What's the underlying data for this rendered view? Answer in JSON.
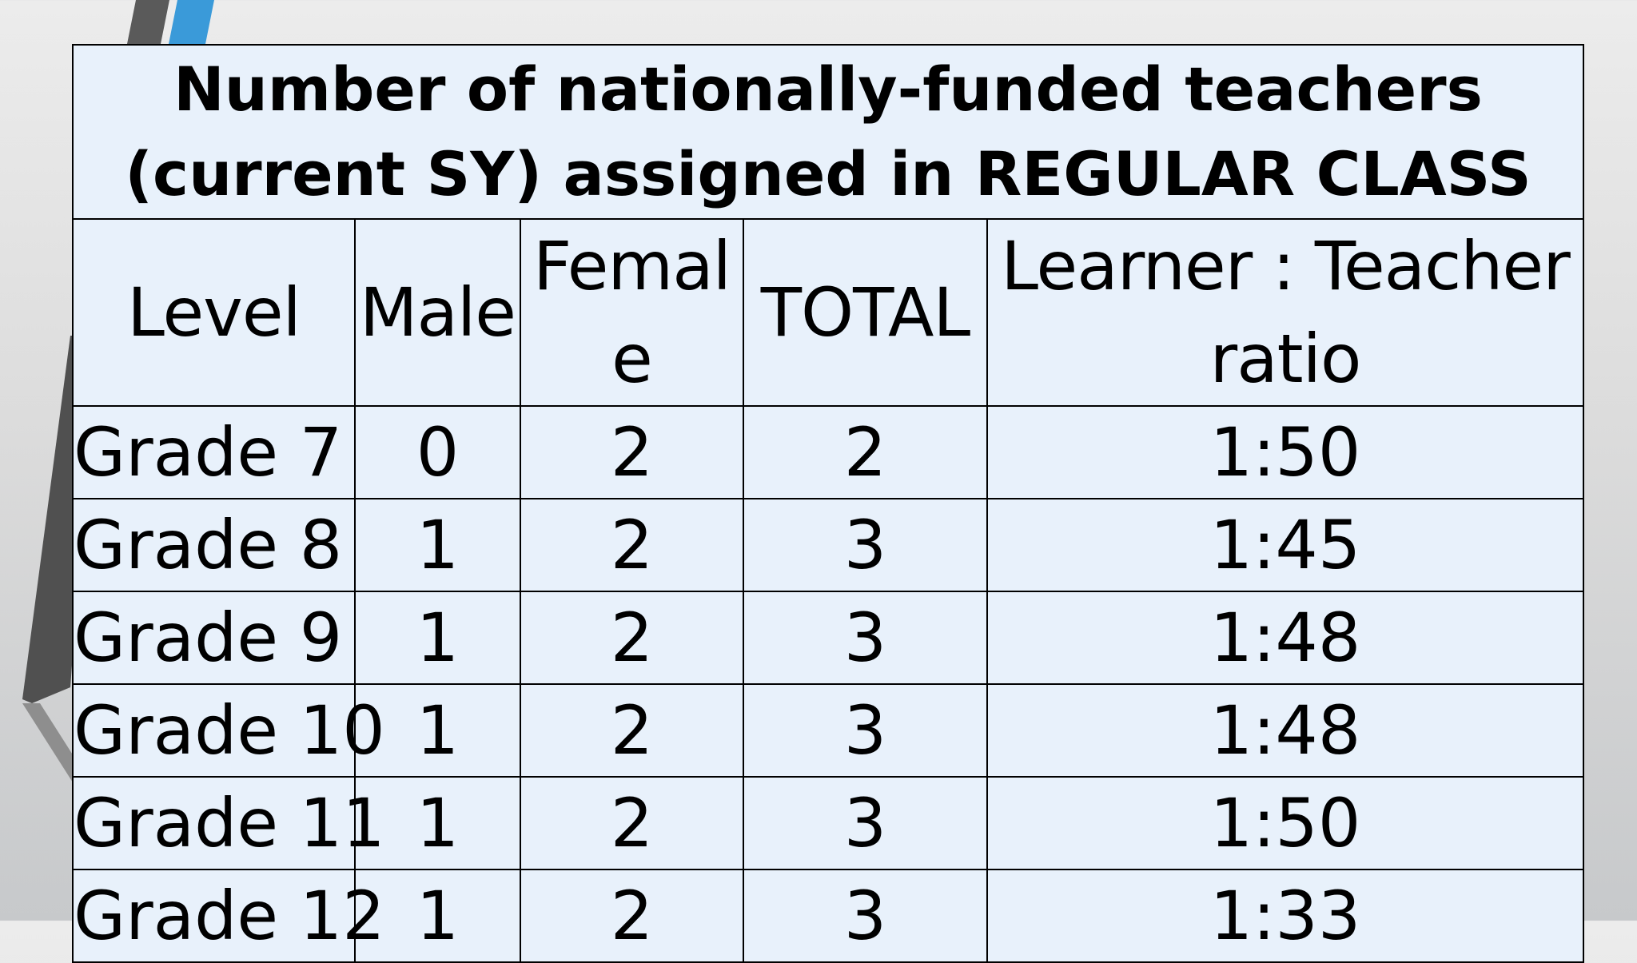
{
  "table": {
    "title": "Number of nationally-funded teachers (current SY) assigned in REGULAR CLASS",
    "columns": [
      "Level",
      "Male",
      "Female",
      "TOTAL",
      "Learner : Teacher ratio"
    ],
    "rows": [
      {
        "level": "Grade 7",
        "male": "0",
        "female": "2",
        "total": "2",
        "ratio": "1:50"
      },
      {
        "level": "Grade 8",
        "male": "1",
        "female": "2",
        "total": "3",
        "ratio": "1:45"
      },
      {
        "level": "Grade 9",
        "male": "1",
        "female": "2",
        "total": "3",
        "ratio": "1:48"
      },
      {
        "level": "Grade 10",
        "male": "1",
        "female": "2",
        "total": "3",
        "ratio": "1:48"
      },
      {
        "level": "Grade 11",
        "male": "1",
        "female": "2",
        "total": "3",
        "ratio": "1:50"
      },
      {
        "level": "Grade 12",
        "male": "1",
        "female": "2",
        "total": "3",
        "ratio": "1:33"
      }
    ]
  },
  "colors": {
    "cell_background": "#e8f1fb",
    "border": "#000000",
    "accent_blue": "#3a9ad9",
    "accent_dark": "#555555"
  }
}
